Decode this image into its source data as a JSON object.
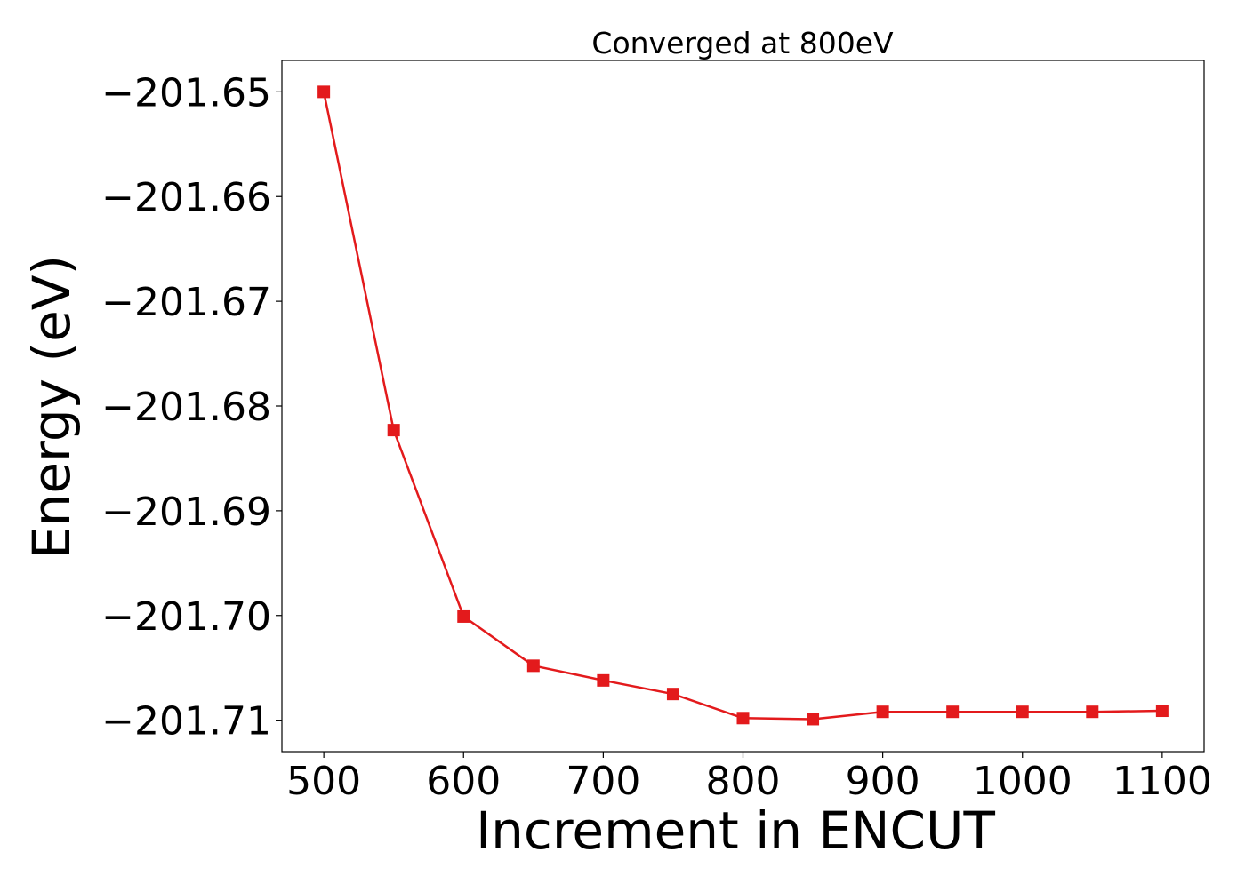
{
  "chart_data": {
    "type": "line",
    "title": "Converged at 800eV",
    "xlabel": "Increment in ENCUT",
    "ylabel": "Energy (eV)",
    "xlim": [
      470,
      1130
    ],
    "ylim": [
      -201.713,
      -201.647
    ],
    "xticks": [
      500,
      600,
      700,
      800,
      900,
      1000,
      1100
    ],
    "yticks": [
      -201.65,
      -201.66,
      -201.67,
      -201.68,
      -201.69,
      -201.7,
      -201.71
    ],
    "ytick_labels": [
      "−201.65",
      "−201.66",
      "−201.67",
      "−201.68",
      "−201.69",
      "−201.70",
      "−201.71"
    ],
    "grid": false,
    "legend": "none",
    "series": [
      {
        "color": "#e31a1c",
        "marker": "square",
        "x": [
          500,
          550,
          600,
          650,
          700,
          750,
          800,
          850,
          900,
          950,
          1000,
          1050,
          1100
        ],
        "y": [
          -201.65,
          -201.6823,
          -201.7001,
          -201.7048,
          -201.7062,
          -201.7075,
          -201.7098,
          -201.7099,
          -201.7092,
          -201.7092,
          -201.7092,
          -201.7092,
          -201.7091
        ]
      }
    ]
  }
}
